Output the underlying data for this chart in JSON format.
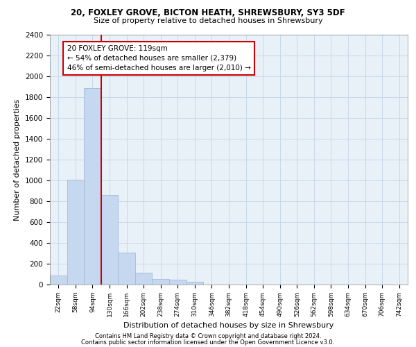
{
  "title1": "20, FOXLEY GROVE, BICTON HEATH, SHREWSBURY, SY3 5DF",
  "title2": "Size of property relative to detached houses in Shrewsbury",
  "xlabel": "Distribution of detached houses by size in Shrewsbury",
  "ylabel": "Number of detached properties",
  "footer1": "Contains HM Land Registry data © Crown copyright and database right 2024.",
  "footer2": "Contains public sector information licensed under the Open Government Licence v3.0.",
  "property_label": "20 FOXLEY GROVE: 119sqm",
  "annotation_line1": "← 54% of detached houses are smaller (2,379)",
  "annotation_line2": "46% of semi-detached houses are larger (2,010) →",
  "bar_categories": [
    "22sqm",
    "58sqm",
    "94sqm",
    "130sqm",
    "166sqm",
    "202sqm",
    "238sqm",
    "274sqm",
    "310sqm",
    "346sqm",
    "382sqm",
    "418sqm",
    "454sqm",
    "490sqm",
    "526sqm",
    "562sqm",
    "598sqm",
    "634sqm",
    "670sqm",
    "706sqm",
    "742sqm"
  ],
  "bar_values": [
    90,
    1010,
    1890,
    860,
    310,
    115,
    55,
    48,
    25,
    0,
    0,
    0,
    0,
    0,
    0,
    0,
    0,
    0,
    0,
    0,
    0
  ],
  "bar_color": "#c5d8f0",
  "bar_edgecolor": "#a0bcd8",
  "vline_color": "#cc0000",
  "annotation_box_color": "#cc0000",
  "annotation_fill": "#ffffff",
  "background_color": "#ffffff",
  "axes_facecolor": "#e8f0f8",
  "grid_color": "#c8d8e8",
  "ylim": [
    0,
    2400
  ],
  "yticks": [
    0,
    200,
    400,
    600,
    800,
    1000,
    1200,
    1400,
    1600,
    1800,
    2000,
    2200,
    2400
  ]
}
